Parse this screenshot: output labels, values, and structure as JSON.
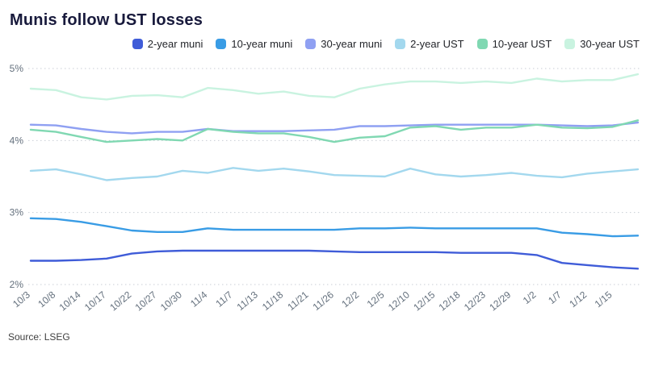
{
  "title": "Munis follow UST losses",
  "source": "Source: LSEG",
  "chart_data": {
    "type": "line",
    "title": "Munis follow UST losses",
    "xlabel": "",
    "ylabel": "",
    "ylim": [
      2,
      5
    ],
    "grid": "dotted-horizontal",
    "legend_position": "top-right",
    "yticks": [
      {
        "value": 2,
        "label": "2%"
      },
      {
        "value": 3,
        "label": "3%"
      },
      {
        "value": 4,
        "label": "4%"
      },
      {
        "value": 5,
        "label": "5%"
      }
    ],
    "x": [
      "10/3",
      "10/8",
      "10/14",
      "10/17",
      "10/22",
      "10/27",
      "10/30",
      "11/4",
      "11/7",
      "11/13",
      "11/18",
      "11/21",
      "11/26",
      "12/2",
      "12/5",
      "12/10",
      "12/15",
      "12/18",
      "12/23",
      "12/29",
      "1/2",
      "1/7",
      "1/12",
      "1/15",
      ""
    ],
    "series": [
      {
        "name": "2-year muni",
        "color": "#3f5cd8",
        "values": [
          2.33,
          2.33,
          2.34,
          2.36,
          2.43,
          2.46,
          2.47,
          2.47,
          2.47,
          2.47,
          2.47,
          2.47,
          2.46,
          2.45,
          2.45,
          2.45,
          2.45,
          2.44,
          2.44,
          2.44,
          2.41,
          2.3,
          2.27,
          2.24,
          2.22
        ]
      },
      {
        "name": "10-year muni",
        "color": "#399ce5",
        "values": [
          2.92,
          2.91,
          2.87,
          2.81,
          2.75,
          2.73,
          2.73,
          2.78,
          2.76,
          2.76,
          2.76,
          2.76,
          2.76,
          2.78,
          2.78,
          2.79,
          2.78,
          2.78,
          2.78,
          2.78,
          2.78,
          2.72,
          2.7,
          2.67,
          2.68
        ]
      },
      {
        "name": "30-year muni",
        "color": "#8fa0f2",
        "values": [
          4.22,
          4.21,
          4.16,
          4.12,
          4.1,
          4.12,
          4.12,
          4.16,
          4.13,
          4.13,
          4.13,
          4.14,
          4.15,
          4.2,
          4.2,
          4.21,
          4.22,
          4.22,
          4.22,
          4.22,
          4.22,
          4.21,
          4.2,
          4.21,
          4.25
        ]
      },
      {
        "name": "2-year UST",
        "color": "#a3d8ee",
        "values": [
          3.58,
          3.6,
          3.53,
          3.45,
          3.48,
          3.5,
          3.58,
          3.55,
          3.62,
          3.58,
          3.61,
          3.57,
          3.52,
          3.51,
          3.5,
          3.61,
          3.53,
          3.5,
          3.52,
          3.55,
          3.51,
          3.49,
          3.54,
          3.57,
          3.6
        ]
      },
      {
        "name": "10-year UST",
        "color": "#80d8b2",
        "values": [
          4.15,
          4.12,
          4.05,
          3.98,
          4.0,
          4.02,
          4.0,
          4.16,
          4.12,
          4.1,
          4.1,
          4.05,
          3.98,
          4.04,
          4.06,
          4.18,
          4.2,
          4.15,
          4.18,
          4.18,
          4.22,
          4.18,
          4.17,
          4.19,
          4.28
        ]
      },
      {
        "name": "30-year UST",
        "color": "#c9f3e0",
        "values": [
          4.72,
          4.7,
          4.6,
          4.57,
          4.62,
          4.63,
          4.6,
          4.73,
          4.7,
          4.65,
          4.68,
          4.62,
          4.6,
          4.72,
          4.78,
          4.82,
          4.82,
          4.8,
          4.82,
          4.8,
          4.86,
          4.82,
          4.84,
          4.84,
          4.92
        ]
      }
    ]
  }
}
